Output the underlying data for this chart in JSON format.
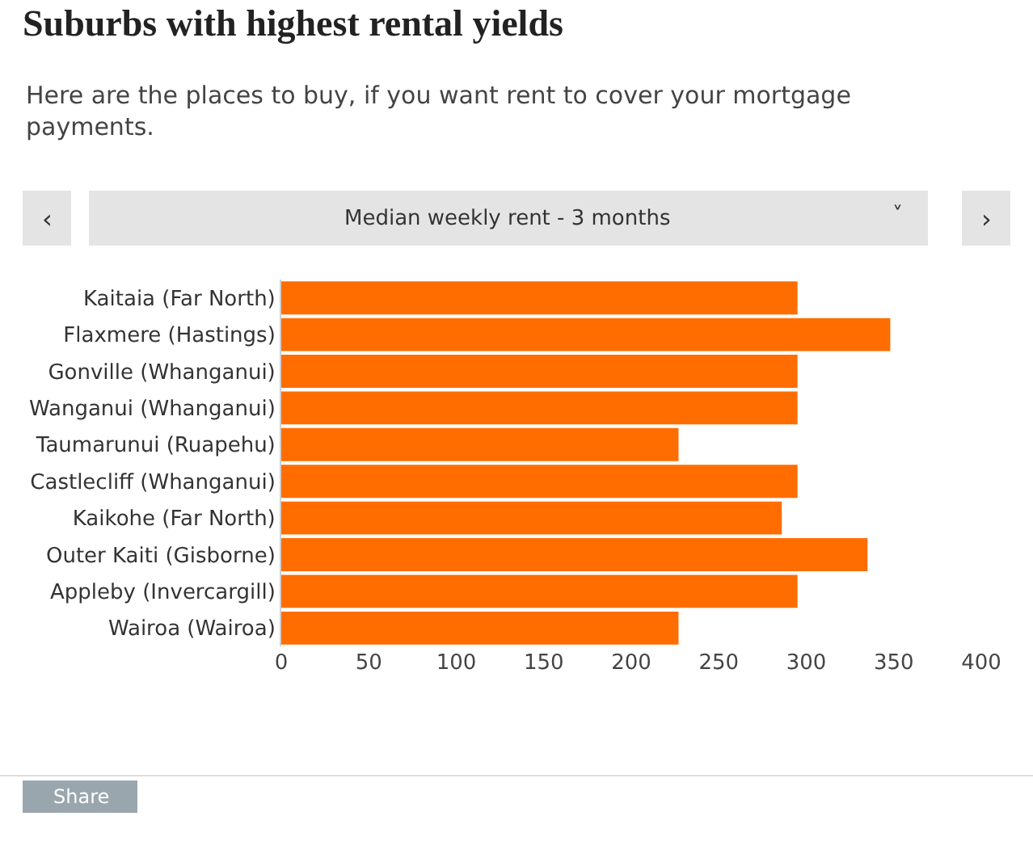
{
  "chart_data": {
    "type": "bar",
    "orientation": "horizontal",
    "title": "Suburbs with highest rental yields",
    "subtitle": "Here are the places to buy, if you want rent to cover your mortgage payments.",
    "categories": [
      "Kaitaia (Far North)",
      "Flaxmere (Hastings)",
      "Gonville (Whanganui)",
      "Wanganui (Whanganui)",
      "Taumarunui (Ruapehu)",
      "Castlecliff (Whanganui)",
      "Kaikohe (Far North)",
      "Outer Kaiti (Gisborne)",
      "Appleby (Invercargill)",
      "Wairoa (Wairoa)"
    ],
    "values": [
      295,
      348,
      295,
      295,
      227,
      295,
      286,
      335,
      295,
      227
    ],
    "color": "#ff6d00",
    "xlim": [
      0,
      400
    ],
    "xticks": [
      0,
      50,
      100,
      150,
      200,
      250,
      300,
      350,
      400
    ],
    "annotations": [
      "‹",
      "Median weekly rent - 3 months",
      "˅",
      "›",
      "Share"
    ]
  }
}
